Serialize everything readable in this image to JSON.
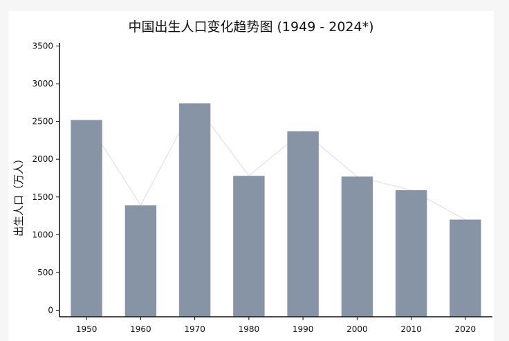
{
  "chart_data": {
    "type": "bar",
    "title": "中国出生人口变化趋势图 (1949 - 2024*)",
    "xlabel": "",
    "ylabel": "出生人口（万人）",
    "categories": [
      "1950",
      "1960",
      "1970",
      "1980",
      "1990",
      "2000",
      "2010",
      "2020"
    ],
    "values": [
      2520,
      1390,
      2740,
      1780,
      2370,
      1770,
      1590,
      1200
    ],
    "ylim": [
      0,
      3500
    ],
    "yticks": [
      0,
      500,
      1000,
      1500,
      2000,
      2500,
      3000,
      3500
    ],
    "grid": false,
    "legend": "none",
    "colors": {
      "bar": "#8794a6",
      "trend_line": "#e4e4f7",
      "axis": "#111111"
    }
  }
}
